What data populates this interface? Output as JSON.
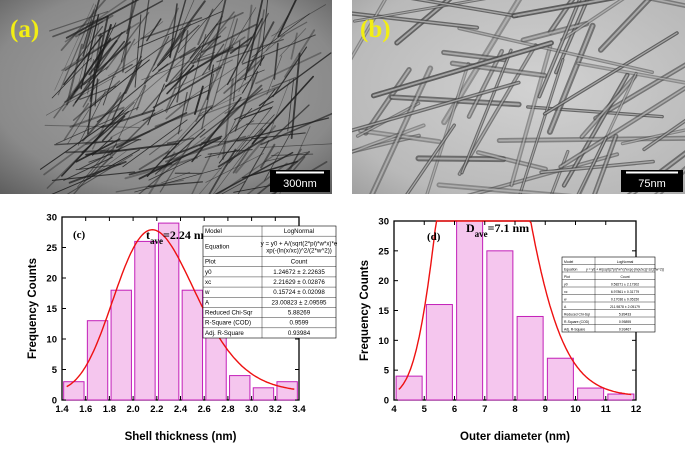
{
  "panels": {
    "a": {
      "letter": "(a)",
      "scalebar": "300nm"
    },
    "b": {
      "letter": "(b)",
      "scalebar": "75nm"
    }
  },
  "chart_data": [
    {
      "type": "bar",
      "panel_label": "(c)",
      "annotation_main": "t",
      "annotation_sub": "ave",
      "annotation_rest": "=2.24 nm",
      "xlabel": "Shell thickness (nm)",
      "ylabel": "Frequency Counts",
      "xlim": [
        1.4,
        3.4
      ],
      "ylim": [
        0,
        30
      ],
      "x_ticks": [
        "1.4",
        "1.6",
        "1.8",
        "2.0",
        "2.2",
        "2.4",
        "2.6",
        "2.8",
        "3.0",
        "3.2",
        "3.4"
      ],
      "y_ticks": [
        "0",
        "5",
        "10",
        "15",
        "20",
        "25",
        "30"
      ],
      "bin_centers": [
        1.5,
        1.7,
        1.9,
        2.1,
        2.3,
        2.5,
        2.7,
        2.9,
        3.1,
        3.3
      ],
      "bin_width": 0.2,
      "values": [
        3,
        13,
        18,
        26,
        29,
        18,
        11,
        4,
        2,
        3
      ],
      "bar_fill": "#f5c6ee",
      "bar_stroke": "#c21fb8",
      "fit": {
        "model": "LogNormal",
        "y0": 1.24672,
        "xc": 2.21629,
        "w": 0.15724,
        "A": 23.00823,
        "color": "#ee1111"
      },
      "fit_table": [
        [
          "Model",
          "LogNormal"
        ],
        [
          "Equation",
          "y = y0 + A/(sqrt(2*pi)*w*x)*e",
          "xp(-(ln(x/xc))^2/(2*w^2))"
        ],
        [
          "Plot",
          "Count"
        ],
        [
          "y0",
          "1.24672 ± 2.22635"
        ],
        [
          "xc",
          "2.21629 ± 0.02876"
        ],
        [
          "w",
          "0.15724 ± 0.02098"
        ],
        [
          "A",
          "23.00823 ± 2.09595"
        ],
        [
          "Reduced Chi-Sqr",
          "5.88269"
        ],
        [
          "R-Square (COD)",
          "0.9599"
        ],
        [
          "Adj. R-Square",
          "0.93984"
        ]
      ]
    },
    {
      "type": "bar",
      "panel_label": "(d)",
      "annotation_main": "D",
      "annotation_sub": "ave",
      "annotation_rest": "=7.1 nm",
      "xlabel": "Outer diameter (nm)",
      "ylabel": "Frequency Counts",
      "xlim": [
        4,
        12
      ],
      "ylim": [
        0,
        30
      ],
      "x_ticks": [
        "4",
        "5",
        "6",
        "7",
        "8",
        "9",
        "10",
        "11",
        "12"
      ],
      "y_ticks": [
        "0",
        "5",
        "10",
        "15",
        "20",
        "25",
        "30"
      ],
      "bin_centers": [
        4.5,
        5.5,
        6.5,
        7.5,
        8.5,
        9.5,
        10.5,
        11.5
      ],
      "bin_width": 1,
      "values": [
        4,
        16,
        30,
        25,
        14,
        7,
        2,
        1
      ],
      "bar_fill": "#f5c6ee",
      "bar_stroke": "#c21fb8",
      "fit": {
        "model": "LogNormal",
        "y0": 0.58271,
        "xc": 6.97861,
        "w": 0.17036,
        "A": 211.9878,
        "color": "#ee1111"
      },
      "fit_table": [
        [
          "Model",
          "LogNormal"
        ],
        [
          "Equation",
          "y = y0 + A/(sqrt(2*pi)*w*x)*exp(-(ln(x/xc))^2/(2*w^2))"
        ],
        [
          "Plot",
          "Count"
        ],
        [
          "y0",
          "0.58271 ± 2.17302"
        ],
        [
          "xc",
          "6.97861 ± 0.31779"
        ],
        [
          "w",
          "0.17036 ± 0.05150"
        ],
        [
          "A",
          "211.9878 ± 2.05179"
        ],
        [
          "Reduced Chi-Sqr",
          "5.89433"
        ],
        [
          "R-Square (COD)",
          "0.95895"
        ],
        [
          "Adj. R-Square",
          "0.93467"
        ]
      ]
    }
  ]
}
